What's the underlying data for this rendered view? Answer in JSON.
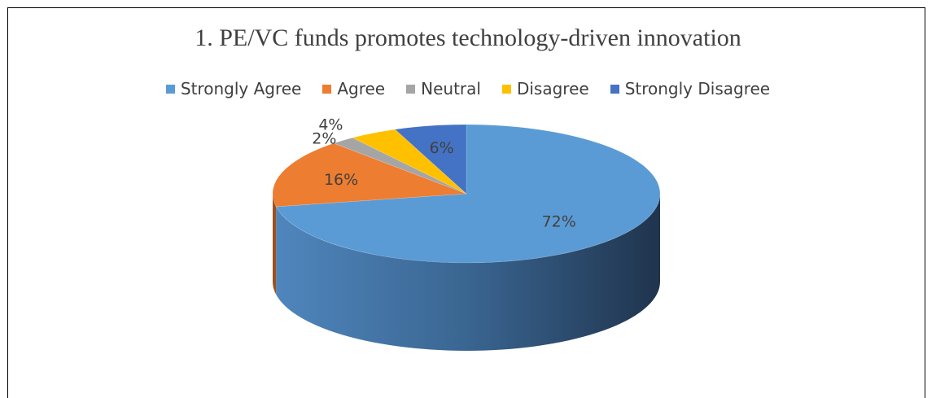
{
  "chart_data": {
    "type": "pie",
    "title": "1. PE/VC funds promotes technology-driven innovation",
    "legend_placement": "top",
    "slices": [
      {
        "label": "Strongly Agree",
        "value": 72,
        "display": "72%",
        "color": "#5B9BD5"
      },
      {
        "label": "Agree",
        "value": 16,
        "display": "16%",
        "color": "#ED7D31"
      },
      {
        "label": "Neutral",
        "value": 2,
        "display": "2%",
        "color": "#A5A5A5"
      },
      {
        "label": "Disagree",
        "value": 4,
        "display": "4%",
        "color": "#FFC000"
      },
      {
        "label": "Strongly Disagree",
        "value": 6,
        "display": "6%",
        "color": "#4472C4"
      }
    ]
  }
}
